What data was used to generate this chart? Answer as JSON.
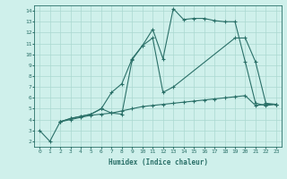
{
  "background_color": "#cff0eb",
  "line_color": "#2a7068",
  "grid_color": "#aad8d0",
  "xlabel": "Humidex (Indice chaleur)",
  "xlim": [
    -0.5,
    23.5
  ],
  "ylim": [
    1.5,
    14.5
  ],
  "xticks": [
    0,
    1,
    2,
    3,
    4,
    5,
    6,
    7,
    8,
    9,
    10,
    11,
    12,
    13,
    14,
    15,
    16,
    17,
    18,
    19,
    20,
    21,
    22,
    23
  ],
  "yticks": [
    2,
    3,
    4,
    5,
    6,
    7,
    8,
    9,
    10,
    11,
    12,
    13,
    14
  ],
  "line1_x": [
    0,
    1,
    2,
    3,
    4,
    5,
    6,
    7,
    8,
    9,
    10,
    11,
    12,
    13,
    14,
    15,
    16,
    17,
    18,
    19,
    20,
    21,
    22,
    23
  ],
  "line1_y": [
    3.0,
    2.0,
    3.8,
    4.1,
    4.3,
    4.5,
    5.0,
    4.6,
    4.5,
    9.5,
    10.8,
    12.3,
    9.6,
    14.2,
    13.2,
    13.3,
    13.3,
    13.1,
    13.0,
    13.0,
    9.3,
    5.5,
    5.3,
    5.4
  ],
  "line2_x": [
    2,
    3,
    4,
    5,
    6,
    7,
    8,
    9,
    10,
    11,
    12,
    13,
    19,
    20,
    21,
    22,
    23
  ],
  "line2_y": [
    3.8,
    4.1,
    4.3,
    4.5,
    5.0,
    6.5,
    7.3,
    9.6,
    10.8,
    11.5,
    6.5,
    7.0,
    11.5,
    11.5,
    9.3,
    5.5,
    5.4
  ],
  "line3_x": [
    2,
    3,
    4,
    5,
    6,
    7,
    8,
    9,
    10,
    11,
    12,
    13,
    14,
    15,
    16,
    17,
    18,
    19,
    20,
    21,
    22,
    23
  ],
  "line3_y": [
    3.8,
    4.0,
    4.2,
    4.4,
    4.5,
    4.6,
    4.8,
    5.0,
    5.2,
    5.3,
    5.4,
    5.5,
    5.6,
    5.7,
    5.8,
    5.9,
    6.0,
    6.1,
    6.2,
    5.3,
    5.4,
    5.4
  ],
  "marker": "+",
  "markersize": 3,
  "linewidth": 0.8,
  "tick_fontsize": 4.5,
  "xlabel_fontsize": 5.5
}
